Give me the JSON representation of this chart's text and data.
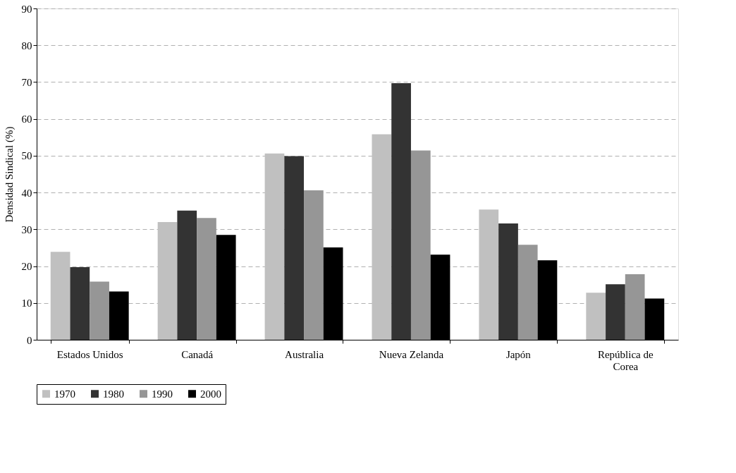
{
  "chart_data": {
    "type": "bar",
    "ylabel": "Densidad Sindical (%)",
    "categories": [
      "Estados Unidos",
      "Canadá",
      "Australia",
      "Nueva Zelanda",
      "Japón",
      "República de Corea"
    ],
    "series": [
      {
        "name": "1970",
        "color": "#c0c0c0",
        "values": [
          23.9,
          32.0,
          50.6,
          55.8,
          35.4,
          12.8
        ]
      },
      {
        "name": "1980",
        "color": "#333333",
        "values": [
          19.7,
          35.1,
          49.9,
          69.7,
          31.6,
          15.1
        ]
      },
      {
        "name": "1990",
        "color": "#969696",
        "values": [
          15.8,
          33.1,
          40.6,
          51.4,
          25.8,
          17.8
        ]
      },
      {
        "name": "2000",
        "color": "#000000",
        "values": [
          13.1,
          28.5,
          25.1,
          23.1,
          21.6,
          11.2
        ]
      }
    ],
    "ylim": [
      0,
      90
    ],
    "yticks": [
      0,
      10,
      20,
      30,
      40,
      50,
      60,
      70,
      80,
      90
    ],
    "grid": "y",
    "legend": "bottom"
  }
}
